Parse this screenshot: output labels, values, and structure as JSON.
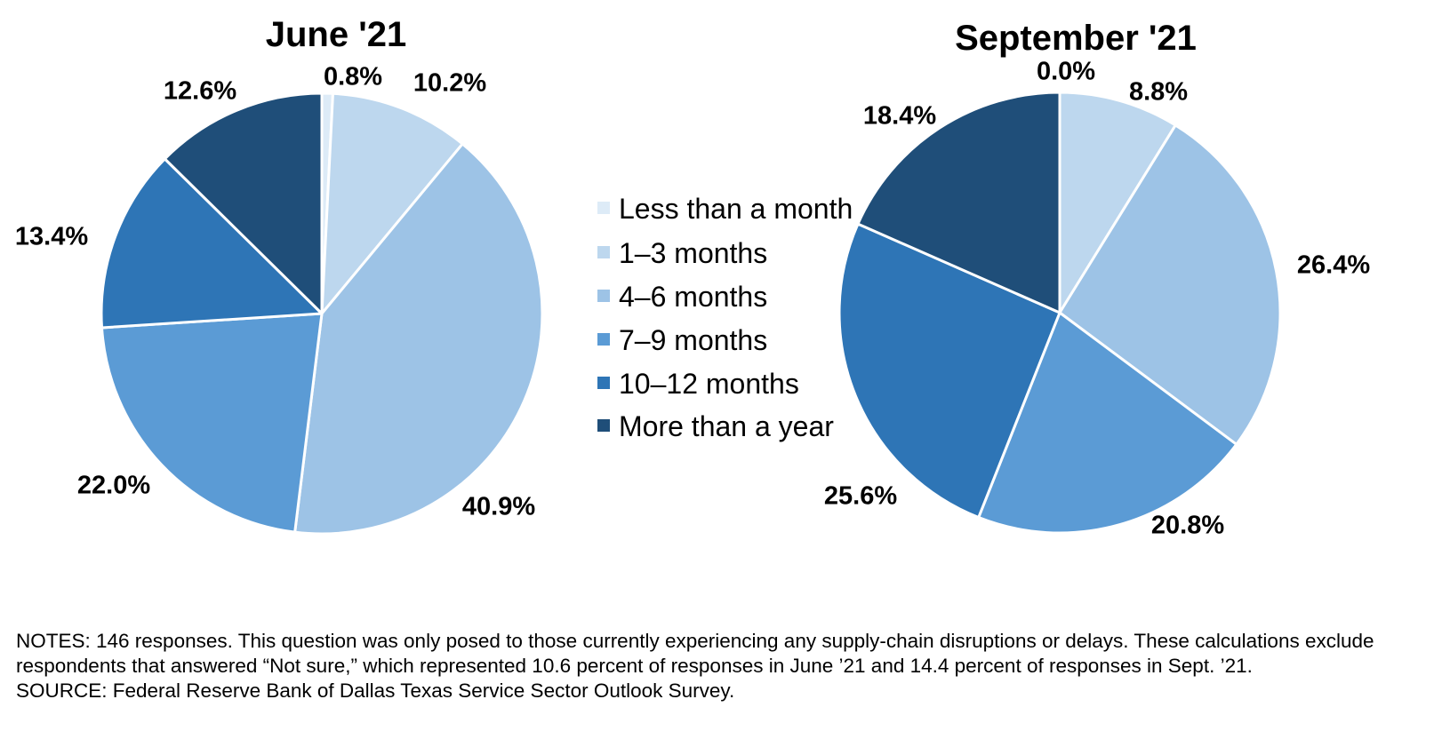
{
  "chart_data": [
    {
      "type": "pie",
      "title": "June '21",
      "categories": [
        "Less than a month",
        "1–3 months",
        "4–6 months",
        "7–9 months",
        "10–12 months",
        "More than a year"
      ],
      "values": [
        0.8,
        10.2,
        40.9,
        22.0,
        13.4,
        12.6
      ],
      "value_labels": [
        "0.8%",
        "10.2%",
        "40.9%",
        "22.0%",
        "13.4%",
        "12.6%"
      ],
      "start_angle": "12 o'clock",
      "direction": "clockwise"
    },
    {
      "type": "pie",
      "title": "September '21",
      "categories": [
        "Less than a month",
        "1–3 months",
        "4–6 months",
        "7–9 months",
        "10–12 months",
        "More than a year"
      ],
      "values": [
        0.0,
        8.8,
        26.4,
        20.8,
        25.6,
        18.4
      ],
      "value_labels": [
        "0.0%",
        "8.8%",
        "26.4%",
        "20.8%",
        "25.6%",
        "18.4%"
      ],
      "start_angle": "12 o'clock",
      "direction": "clockwise"
    }
  ],
  "legend": {
    "placement": "center",
    "items": [
      "Less than a month",
      "1–3 months",
      "4–6 months",
      "7–9 months",
      "10–12 months",
      "More than a year"
    ]
  },
  "colors": [
    "#DDEBF7",
    "#BDD7EE",
    "#9DC3E6",
    "#5B9BD5",
    "#2E75B6",
    "#1F4E79"
  ],
  "notes": {
    "line1": "NOTES: 146 responses. This question was only posed to those currently experiencing any supply-chain disruptions or delays.  These calculations exclude respondents that answered “Not sure,” which represented 10.6 percent of responses in June ’21 and 14.4 percent of responses in Sept. ’21.",
    "source": "SOURCE: Federal Reserve Bank of Dallas Texas Service Sector Outlook Survey."
  }
}
